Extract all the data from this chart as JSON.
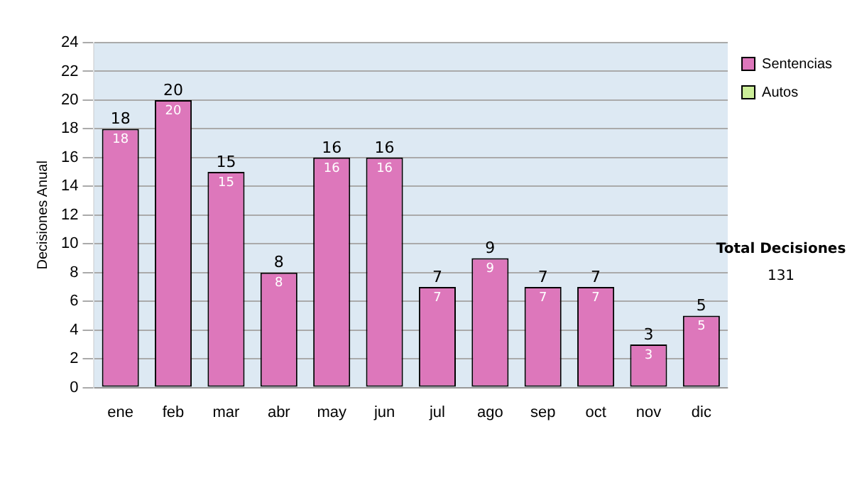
{
  "chart_data": {
    "type": "bar",
    "stacked": true,
    "ylabel": "Decisiones Anual",
    "categories": [
      "ene",
      "feb",
      "mar",
      "abr",
      "may",
      "jun",
      "jul",
      "ago",
      "sep",
      "oct",
      "nov",
      "dic"
    ],
    "series": [
      {
        "name": "Sentencias",
        "color": "#dd77bb",
        "values": [
          18,
          20,
          15,
          8,
          16,
          16,
          7,
          9,
          7,
          7,
          3,
          5
        ],
        "value_labels": [
          "18",
          "20",
          "15",
          "8",
          "16",
          "16",
          "7",
          "9",
          "7",
          "7",
          "3",
          "5"
        ]
      },
      {
        "name": "Autos",
        "color": "#ccee99",
        "values": [
          0,
          0,
          0,
          0,
          0,
          0,
          0,
          0,
          0,
          0,
          0,
          0
        ]
      }
    ],
    "totals": [
      "18",
      "20",
      "15",
      "8",
      "16",
      "16",
      "7",
      "9",
      "7",
      "7",
      "3",
      "5"
    ],
    "ylim": [
      0,
      24
    ],
    "yticks": [
      0,
      2,
      4,
      6,
      8,
      10,
      12,
      14,
      16,
      18,
      20,
      22,
      24
    ],
    "grid": "y",
    "legend": "right",
    "annotations": [
      "Total Decisiones",
      "131"
    ]
  }
}
